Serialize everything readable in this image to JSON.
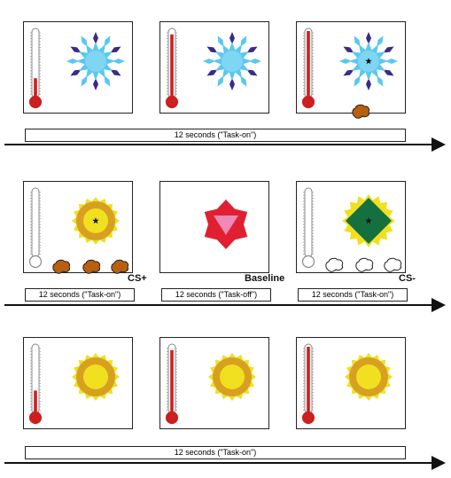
{
  "rows": [
    {
      "labels": [
        "12 seconds (\"Task-on\")"
      ]
    },
    {
      "labels": [
        "12 seconds (\"Task-on\")",
        "12 seconds (\"Task-off\")",
        "12 seconds (\"Task-on\")"
      ]
    },
    {
      "labels": [
        "12 seconds (\"Task-on\")"
      ]
    }
  ],
  "tags": {
    "cs_plus": "CS+",
    "baseline": "Baseline",
    "cs_minus": "CS-"
  },
  "thermometer_levels": {
    "row1": [
      0.3,
      0.95,
      1.0
    ],
    "row2": [
      0.0,
      null,
      0.0
    ],
    "row3": [
      0.35,
      0.95,
      1.0
    ]
  },
  "colors": {
    "snowflake_light": "#5ac8ee",
    "snowflake_dark": "#3a2a8a",
    "sun_outer": "#d8a020",
    "sun_inner": "#f0e020",
    "triangle_outer": "#e02030",
    "triangle_inner": "#f088b8",
    "diamond": "#157040",
    "thermo_red": "#cc2020",
    "bubble_brown": "#b86010"
  }
}
